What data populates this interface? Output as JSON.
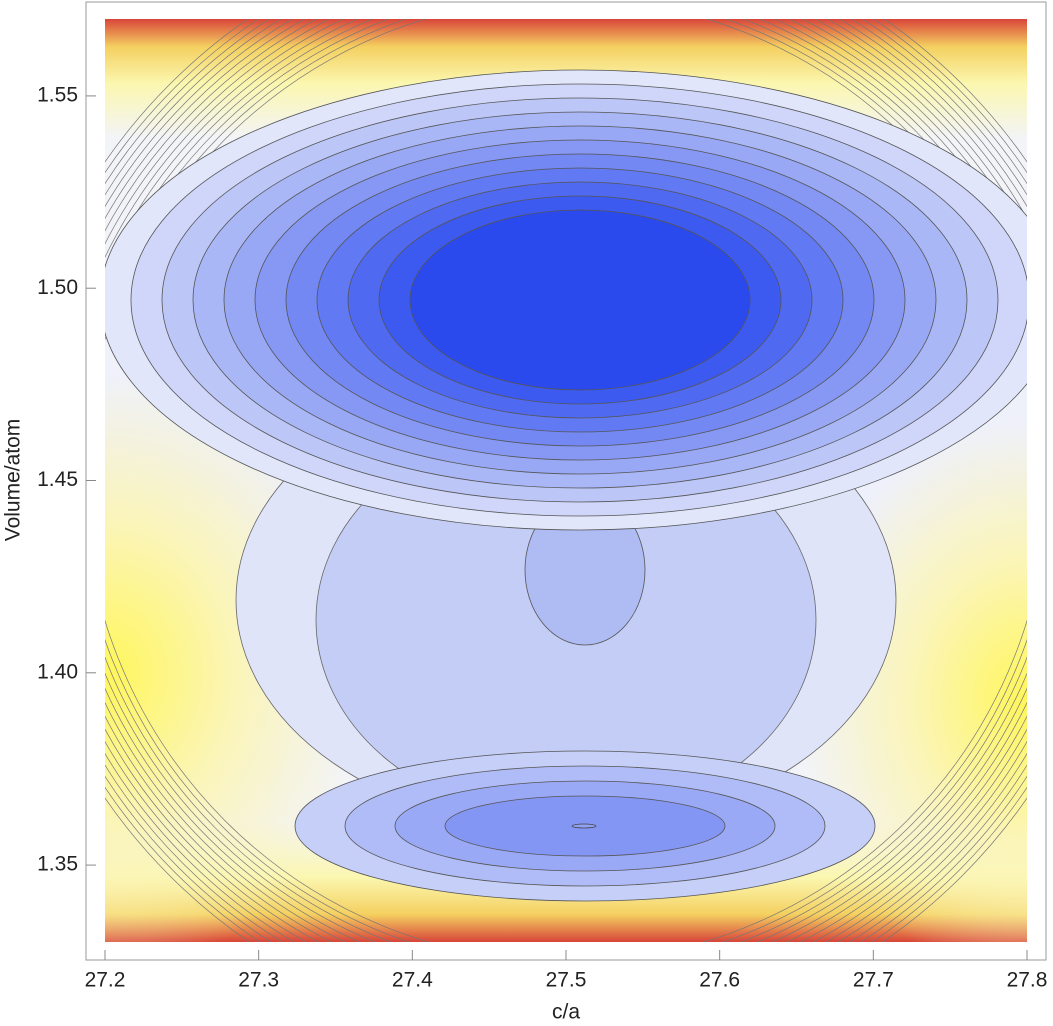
{
  "chart_data": {
    "type": "contour",
    "xlabel": "c/a",
    "ylabel": "Volume/atom",
    "xlim": [
      27.2,
      27.8
    ],
    "ylim": [
      1.33,
      1.57
    ],
    "xticks": [
      27.2,
      27.3,
      27.4,
      27.5,
      27.6,
      27.7,
      27.8
    ],
    "yticks": [
      1.35,
      {
        "value": 1.4,
        "label": "1.40"
      },
      1.45,
      {
        "value": 1.5,
        "label": "1.50"
      },
      1.55
    ]
  }
}
